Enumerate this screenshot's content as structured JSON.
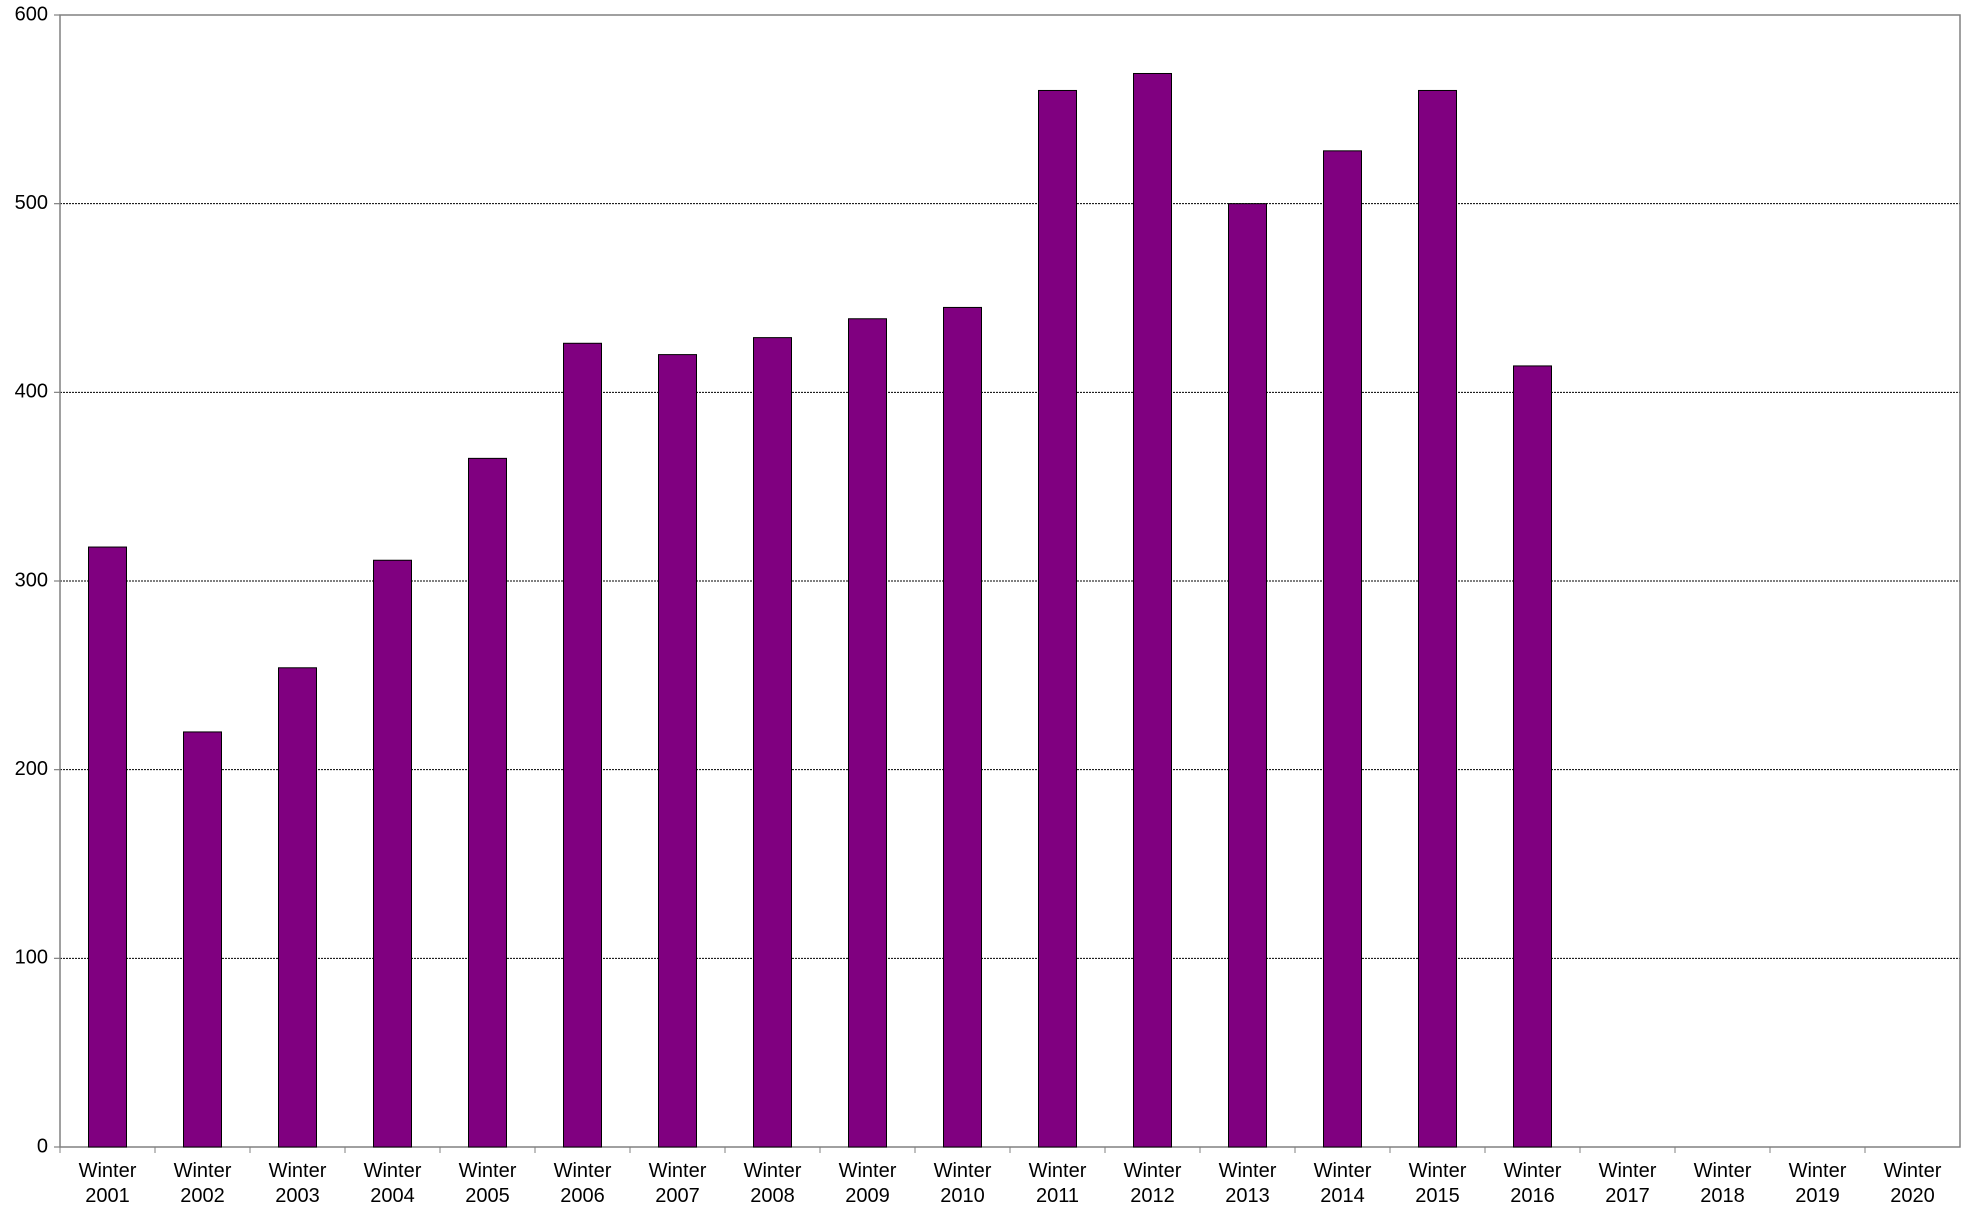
{
  "chart_data": {
    "type": "bar",
    "categories": [
      "Winter 2001",
      "Winter 2002",
      "Winter 2003",
      "Winter 2004",
      "Winter 2005",
      "Winter 2006",
      "Winter 2007",
      "Winter 2008",
      "Winter 2009",
      "Winter 2010",
      "Winter 2011",
      "Winter 2012",
      "Winter 2013",
      "Winter 2014",
      "Winter 2015",
      "Winter 2016",
      "Winter 2017",
      "Winter 2018",
      "Winter 2019",
      "Winter 2020"
    ],
    "values": [
      318,
      220,
      254,
      311,
      365,
      426,
      420,
      429,
      439,
      445,
      560,
      569,
      500,
      528,
      560,
      414,
      null,
      null,
      null,
      null
    ],
    "color": "#800080",
    "ylim": [
      0,
      600
    ],
    "yticks": [
      0,
      100,
      200,
      300,
      400,
      500,
      600
    ],
    "grid": true
  }
}
